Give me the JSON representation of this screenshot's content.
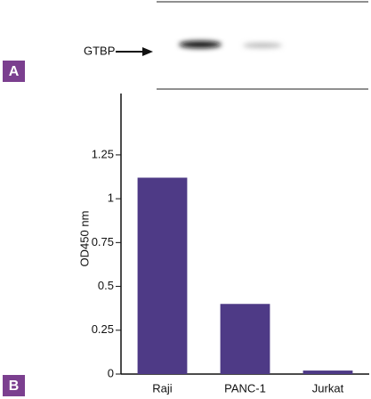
{
  "panel_a": {
    "label": "A",
    "band_label": "GTBP"
  },
  "panel_b_label": "B",
  "chart_data": {
    "type": "bar",
    "y_label": "OD450 nm",
    "categories": [
      "Raji",
      "PANC-1",
      "Jurkat"
    ],
    "values": [
      1.12,
      0.4,
      0.02
    ],
    "color": "#4e3a86",
    "ylim": [
      0,
      1.6
    ],
    "yticks": [
      0,
      0.25,
      0.5,
      0.75,
      1,
      1.25
    ]
  }
}
